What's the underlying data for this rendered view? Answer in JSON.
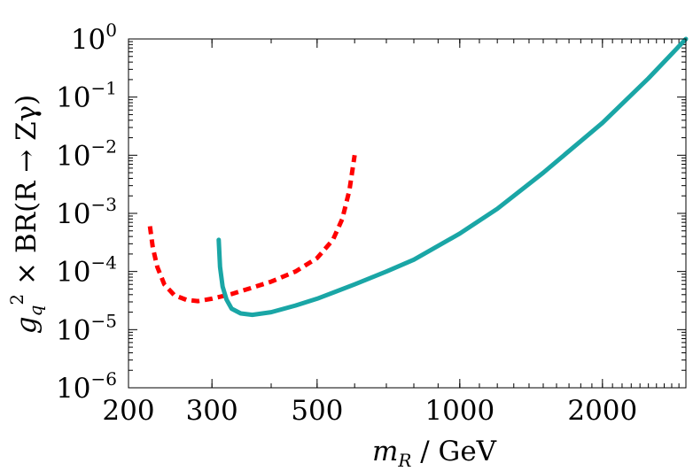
{
  "chart_data": {
    "type": "line",
    "title": "",
    "xscale": "log",
    "yscale": "log",
    "xlim": [
      200,
      3000
    ],
    "ylim": [
      1e-06,
      1
    ],
    "xlabel": {
      "main": "m",
      "sub": "R",
      "rest": " / GeV"
    },
    "ylabel": {
      "g": "g",
      "sub": "q",
      "sup": "2",
      "rest": " × BR(R → Zγ)"
    },
    "xticks": [
      {
        "value": 200,
        "label": "200"
      },
      {
        "value": 300,
        "label": "300"
      },
      {
        "value": 500,
        "label": "500"
      },
      {
        "value": 1000,
        "label": "1000"
      },
      {
        "value": 2000,
        "label": "2000"
      }
    ],
    "yticks": [
      {
        "value": 1,
        "base": "10",
        "exp": "0"
      },
      {
        "value": 0.1,
        "base": "10",
        "exp": "−1"
      },
      {
        "value": 0.01,
        "base": "10",
        "exp": "−2"
      },
      {
        "value": 0.001,
        "base": "10",
        "exp": "−3"
      },
      {
        "value": 0.0001,
        "base": "10",
        "exp": "−4"
      },
      {
        "value": 1e-05,
        "base": "10",
        "exp": "−5"
      },
      {
        "value": 1e-06,
        "base": "10",
        "exp": "−6"
      }
    ],
    "series": [
      {
        "name": "red-dashed",
        "color": "#ff0000",
        "style": "dashed",
        "x": [
          222,
          225,
          230,
          238,
          250,
          265,
          280,
          300,
          330,
          360,
          400,
          450,
          500,
          540,
          565,
          585,
          600
        ],
        "y": [
          0.0006,
          0.00026,
          0.00012,
          6e-05,
          3.9e-05,
          3.25e-05,
          3.1e-05,
          3.4e-05,
          4.1e-05,
          5.1e-05,
          6.7e-05,
          0.0001,
          0.00017,
          0.00035,
          0.0008,
          0.0025,
          0.01
        ]
      },
      {
        "name": "teal-solid",
        "color": "#1aa6a6",
        "style": "solid",
        "x": [
          310,
          312,
          316,
          322,
          330,
          345,
          365,
          400,
          450,
          500,
          600,
          700,
          800,
          1000,
          1200,
          1500,
          2000,
          2500,
          3000
        ],
        "y": [
          0.00035,
          0.00012,
          5.5e-05,
          3.3e-05,
          2.3e-05,
          1.9e-05,
          1.8e-05,
          2e-05,
          2.6e-05,
          3.4e-05,
          6e-05,
          0.0001,
          0.00016,
          0.00045,
          0.0012,
          0.005,
          0.036,
          0.21,
          1.0
        ]
      }
    ]
  }
}
